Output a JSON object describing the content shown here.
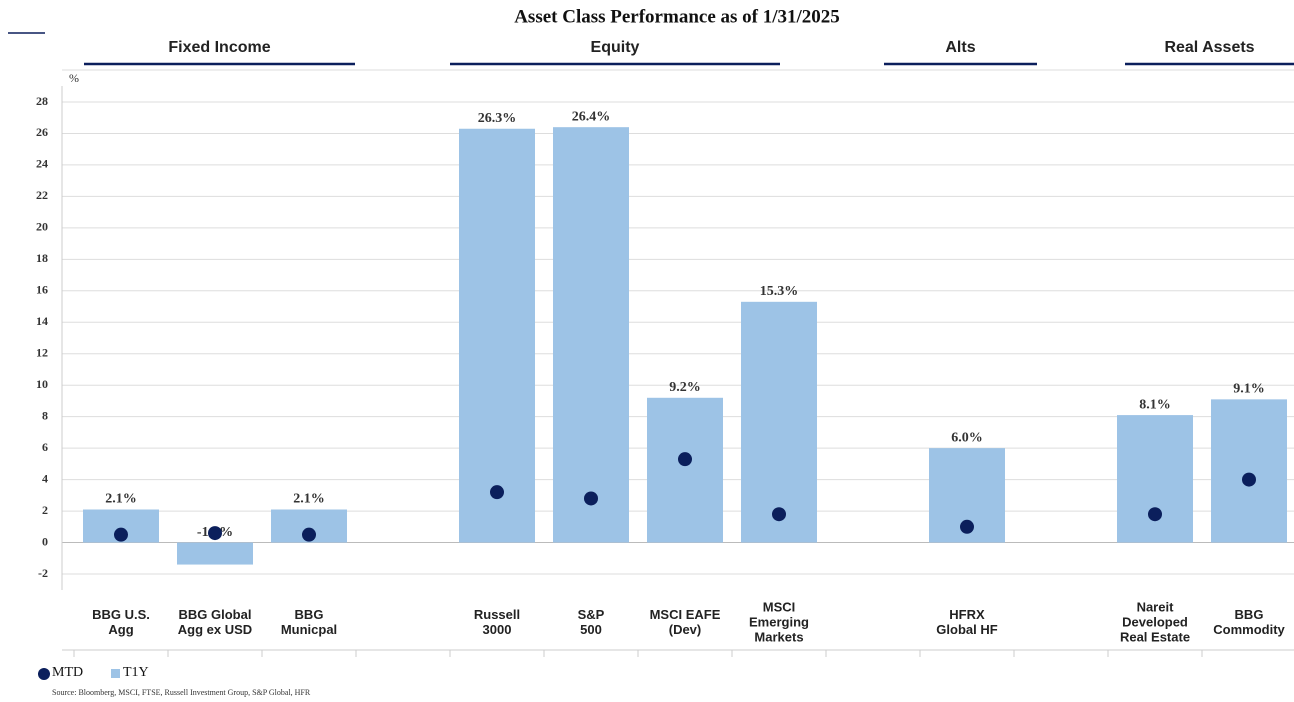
{
  "chart_data": {
    "type": "bar",
    "title": "Asset Class Performance as of 1/31/2025",
    "groups": [
      "Fixed Income",
      "Equity",
      "Alts",
      "Real Assets"
    ],
    "y_label": "%",
    "categories": [
      "BBG U.S.\nAgg",
      "BBG Global\nAgg ex USD",
      "BBG\nMunicpal",
      null,
      "Russell\n3000",
      "S&P\n500",
      "MSCI EAFE\n(Dev)",
      "MSCI\nEmerging\nMarkets",
      null,
      "HFRX\nGlobal HF",
      null,
      "Nareit\nDeveloped\nReal Estate",
      "BBG\nCommodity"
    ],
    "series": [
      {
        "name": "T1Y",
        "color": "#9dc3e6",
        "kind": "bar",
        "values": [
          2.1,
          -1.4,
          2.1,
          null,
          26.3,
          26.4,
          9.2,
          15.3,
          null,
          6.0,
          null,
          8.1,
          9.1
        ],
        "value_labels": [
          "2.1%",
          "-1.4%",
          "2.1%",
          null,
          "26.3%",
          "26.4%",
          "9.2%",
          "15.3%",
          null,
          "6.0%",
          null,
          "8.1%",
          "9.1%"
        ]
      },
      {
        "name": "MTD",
        "color": "#0b1f5c",
        "kind": "dot",
        "values": [
          0.5,
          0.6,
          0.5,
          null,
          3.2,
          2.8,
          5.3,
          1.8,
          null,
          1.0,
          null,
          1.8,
          4.0
        ]
      }
    ],
    "ylim": [
      -2,
      28
    ],
    "yticks": [
      -2,
      0,
      2,
      4,
      6,
      8,
      10,
      12,
      14,
      16,
      18,
      20,
      22,
      24,
      26,
      28
    ],
    "grid": true,
    "source": "Source: Bloomberg, MSCI, FTSE, Russell Investment Group, S&P Global, HFR"
  }
}
